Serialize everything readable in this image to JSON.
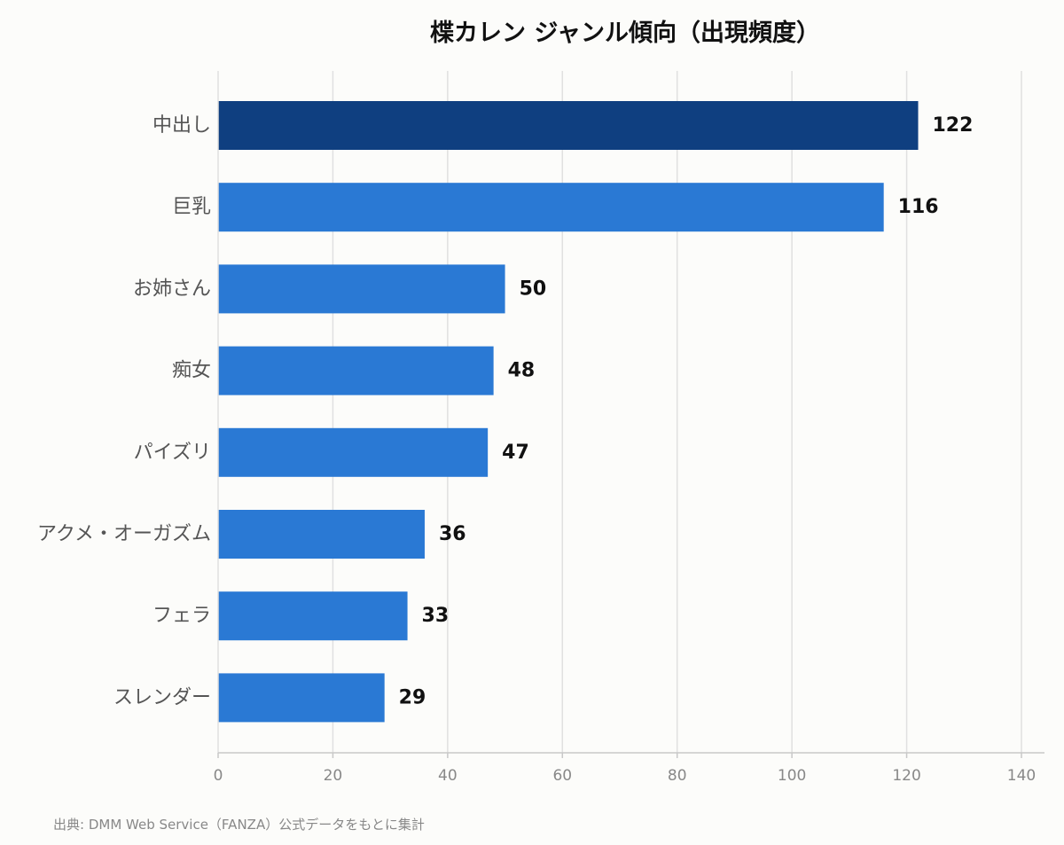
{
  "chart_data": {
    "type": "bar",
    "orientation": "horizontal",
    "title": "楪カレン ジャンル傾向（出現頻度）",
    "categories": [
      "中出し",
      "巨乳",
      "お姉さん",
      "痴女",
      "パイズリ",
      "アクメ・オーガズム",
      "フェラ",
      "スレンダー"
    ],
    "values": [
      122,
      116,
      50,
      48,
      47,
      36,
      33,
      29
    ],
    "xlim": [
      0,
      140
    ],
    "xticks": [
      0,
      20,
      40,
      60,
      80,
      100,
      120,
      140
    ],
    "grid": true,
    "colors": {
      "highlight": "#0f3f80",
      "bar": "#2a79d4",
      "grid": "#e0e0e0",
      "axis": "#c8c8c8"
    }
  },
  "source": "出典: DMM Web Service（FANZA）公式データをもとに集計"
}
